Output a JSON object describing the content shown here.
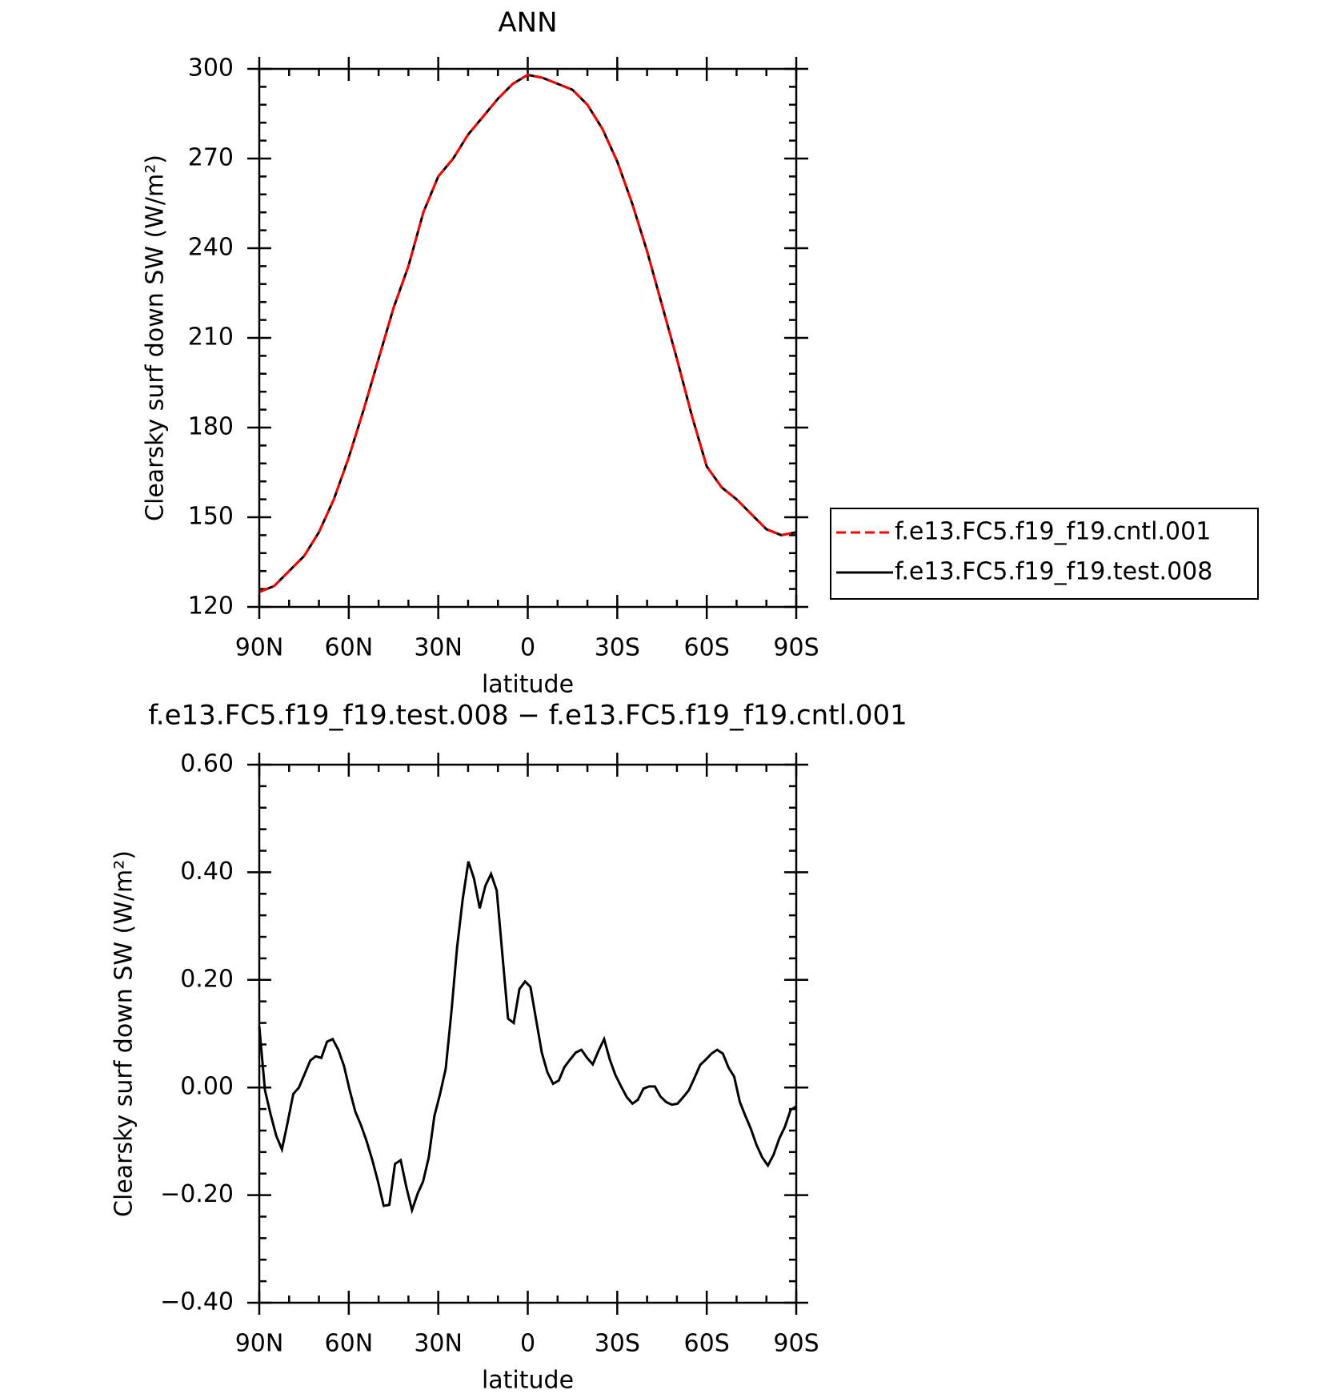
{
  "chart_data": [
    {
      "type": "line",
      "title": "ANN",
      "xlabel": "latitude",
      "ylabel": "Clearsky surf down SW (W/m²)",
      "x": [
        90,
        85,
        80,
        75,
        70,
        65,
        60,
        55,
        50,
        45,
        40,
        35,
        30,
        25,
        20,
        15,
        10,
        5,
        0,
        -5,
        -10,
        -15,
        -20,
        -25,
        -30,
        -35,
        -40,
        -45,
        -50,
        -55,
        -60,
        -65,
        -70,
        -75,
        -80,
        -85,
        -90
      ],
      "series": [
        {
          "name": "f.e13.FC5.f19_f19.cntl.001",
          "color": "#ff0000",
          "dashed": true,
          "values": [
            125,
            127,
            132,
            137,
            145,
            156,
            170,
            186,
            203,
            220,
            234,
            252,
            264,
            270,
            278,
            284,
            290,
            295,
            298,
            297,
            295,
            293,
            288,
            280,
            269,
            255,
            239,
            221,
            203,
            184,
            167,
            160,
            156,
            151,
            146,
            144,
            145
          ]
        },
        {
          "name": "f.e13.FC5.f19_f19.test.008",
          "color": "#000000",
          "dashed": false,
          "values": [
            125,
            127,
            132,
            137,
            145,
            156,
            170,
            186,
            203,
            220,
            234,
            252,
            264,
            270,
            278,
            284,
            290,
            295,
            298,
            297,
            295,
            293,
            288,
            280,
            269,
            255,
            239,
            221,
            203,
            184,
            167,
            160,
            156,
            151,
            146,
            144,
            145
          ]
        }
      ],
      "xlim": [
        90,
        -90
      ],
      "xticks": [
        {
          "value": 90,
          "label": "90N"
        },
        {
          "value": 60,
          "label": "60N"
        },
        {
          "value": 30,
          "label": "30N"
        },
        0,
        {
          "value": -30,
          "label": "30S"
        },
        {
          "value": -60,
          "label": "60S"
        },
        {
          "value": -90,
          "label": "90S"
        }
      ],
      "ylim": [
        120,
        300
      ],
      "yticks": [
        120,
        150,
        180,
        210,
        240,
        270,
        300
      ],
      "legend": "right"
    },
    {
      "type": "line",
      "title": "f.e13.FC5.f19_f19.test.008 − f.e13.FC5.f19_f19.cntl.001",
      "xlabel": "latitude",
      "ylabel": "Clearsky surf down SW (W/m²)",
      "x": [
        90,
        88.1,
        86.2,
        84.3,
        82.4,
        80.5,
        78.6,
        76.7,
        74.8,
        72.9,
        71.1,
        69.2,
        67.3,
        65.4,
        63.5,
        61.6,
        59.7,
        57.8,
        55.9,
        54.0,
        52.1,
        50.2,
        48.3,
        46.4,
        44.5,
        42.6,
        40.7,
        38.8,
        36.9,
        35.1,
        33.2,
        31.3,
        29.4,
        27.5,
        25.6,
        23.7,
        21.8,
        19.9,
        18.0,
        16.1,
        14.2,
        12.3,
        10.4,
        8.5,
        6.6,
        4.7,
        2.8,
        0.9,
        -0.9,
        -2.8,
        -4.7,
        -6.6,
        -8.5,
        -10.4,
        -12.3,
        -14.2,
        -16.1,
        -18.0,
        -19.9,
        -21.8,
        -23.7,
        -25.6,
        -27.5,
        -29.4,
        -31.3,
        -33.2,
        -35.1,
        -36.9,
        -38.8,
        -40.7,
        -42.6,
        -44.5,
        -46.4,
        -48.3,
        -50.2,
        -52.1,
        -54.0,
        -55.9,
        -57.8,
        -59.7,
        -61.6,
        -63.5,
        -65.4,
        -67.3,
        -69.2,
        -71.1,
        -72.9,
        -74.8,
        -76.7,
        -78.6,
        -80.5,
        -82.4,
        -84.3,
        -86.2,
        -88.1,
        -90
      ],
      "series": [
        {
          "color": "#000000",
          "dashed": false,
          "values": [
            0.114,
            -0.005,
            -0.05,
            -0.09,
            -0.115,
            -0.065,
            -0.012,
            0.0,
            0.025,
            0.05,
            0.058,
            0.055,
            0.085,
            0.09,
            0.07,
            0.04,
            -0.005,
            -0.045,
            -0.07,
            -0.1,
            -0.135,
            -0.175,
            -0.22,
            -0.218,
            -0.142,
            -0.135,
            -0.185,
            -0.228,
            -0.197,
            -0.175,
            -0.13,
            -0.053,
            -0.012,
            0.035,
            0.14,
            0.26,
            0.35,
            0.42,
            0.388,
            0.333,
            0.375,
            0.397,
            0.366,
            0.247,
            0.128,
            0.12,
            0.183,
            0.197,
            0.187,
            0.126,
            0.065,
            0.028,
            0.007,
            0.013,
            0.038,
            0.052,
            0.065,
            0.07,
            0.055,
            0.043,
            0.068,
            0.09,
            0.052,
            0.023,
            0.002,
            -0.018,
            -0.03,
            -0.023,
            -0.002,
            0.002,
            0.002,
            -0.017,
            -0.027,
            -0.032,
            -0.03,
            -0.018,
            -0.005,
            0.018,
            0.042,
            0.052,
            0.063,
            0.07,
            0.063,
            0.037,
            0.02,
            -0.027,
            -0.052,
            -0.077,
            -0.107,
            -0.13,
            -0.145,
            -0.125,
            -0.095,
            -0.073,
            -0.042,
            -0.035
          ]
        }
      ],
      "xlim": [
        90,
        -90
      ],
      "xticks": [
        {
          "value": 90,
          "label": "90N"
        },
        {
          "value": 60,
          "label": "60N"
        },
        {
          "value": 30,
          "label": "30N"
        },
        0,
        {
          "value": -30,
          "label": "30S"
        },
        {
          "value": -60,
          "label": "60S"
        },
        {
          "value": -90,
          "label": "90S"
        }
      ],
      "ylim": [
        -0.4,
        0.6
      ],
      "yticks": [
        {
          "value": -0.4,
          "label": "−0.40"
        },
        {
          "value": -0.2,
          "label": "−0.20"
        },
        {
          "value": 0,
          "label": "0.00"
        },
        {
          "value": 0.2,
          "label": "0.20"
        },
        {
          "value": 0.4,
          "label": "0.40"
        },
        {
          "value": 0.6,
          "label": "0.60"
        }
      ]
    }
  ]
}
